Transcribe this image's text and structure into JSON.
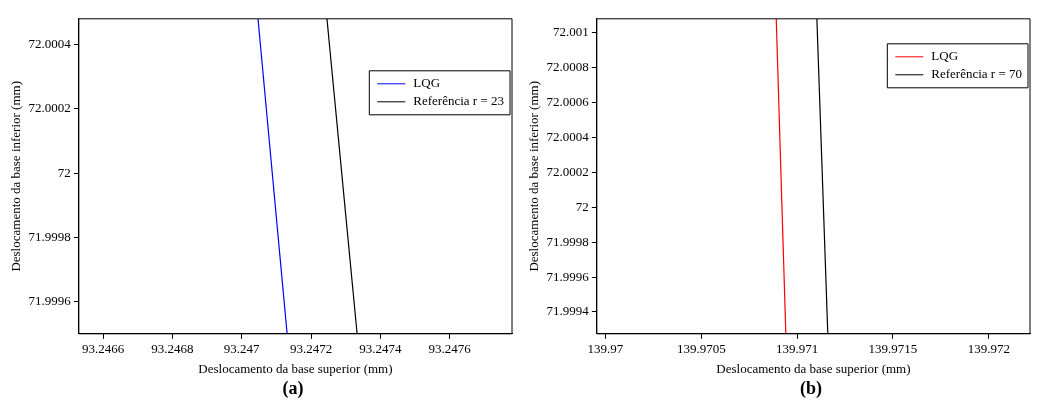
{
  "chart_data": [
    {
      "type": "line",
      "xlabel": "Deslocamento da base superior (mm)",
      "ylabel": "Deslocamento da base inferior (mm)",
      "annotations": [
        "(a)"
      ],
      "xlim": [
        93.24653,
        93.24778
      ],
      "ylim": [
        71.9995,
        72.00048
      ],
      "xticks": [
        93.2466,
        93.2468,
        93.247,
        93.2472,
        93.2474,
        93.2476
      ],
      "yticks": [
        71.9996,
        71.9998,
        72,
        72.0002,
        72.0004
      ],
      "grid": false,
      "legend": "top right",
      "marker": "none",
      "line_style": "solid",
      "series": [
        {
          "name": "LQG",
          "color": "#0000ff",
          "x": [
            93.247047,
            93.247131
          ],
          "values": [
            72.00048,
            71.9995
          ]
        },
        {
          "name": "Referência r = 23",
          "color": "#000000",
          "x": [
            93.247246,
            93.247333
          ],
          "values": [
            72.00048,
            71.9995
          ]
        }
      ]
    },
    {
      "type": "line",
      "xlabel": "Deslocamento da base superior (mm)",
      "ylabel": "Deslocamento da base inferior (mm)",
      "annotations": [
        "(b)"
      ],
      "xlim": [
        139.969955,
        139.972215
      ],
      "ylim": [
        71.999275,
        72.00108
      ],
      "xticks": [
        139.97,
        139.9705,
        139.971,
        139.9715,
        139.972
      ],
      "yticks": [
        71.9994,
        71.9996,
        71.9998,
        72,
        72.0002,
        72.0004,
        72.0006,
        72.0008,
        72.001
      ],
      "grid": false,
      "legend": "top right",
      "marker": "none",
      "line_style": "solid",
      "series": [
        {
          "name": "LQG",
          "color": "#ff0000",
          "x": [
            139.970891,
            139.970941
          ],
          "values": [
            72.00108,
            71.999275
          ]
        },
        {
          "name": "Referência r = 70",
          "color": "#000000",
          "x": [
            139.971103,
            139.97116
          ],
          "values": [
            72.00108,
            71.999275
          ]
        }
      ]
    }
  ]
}
